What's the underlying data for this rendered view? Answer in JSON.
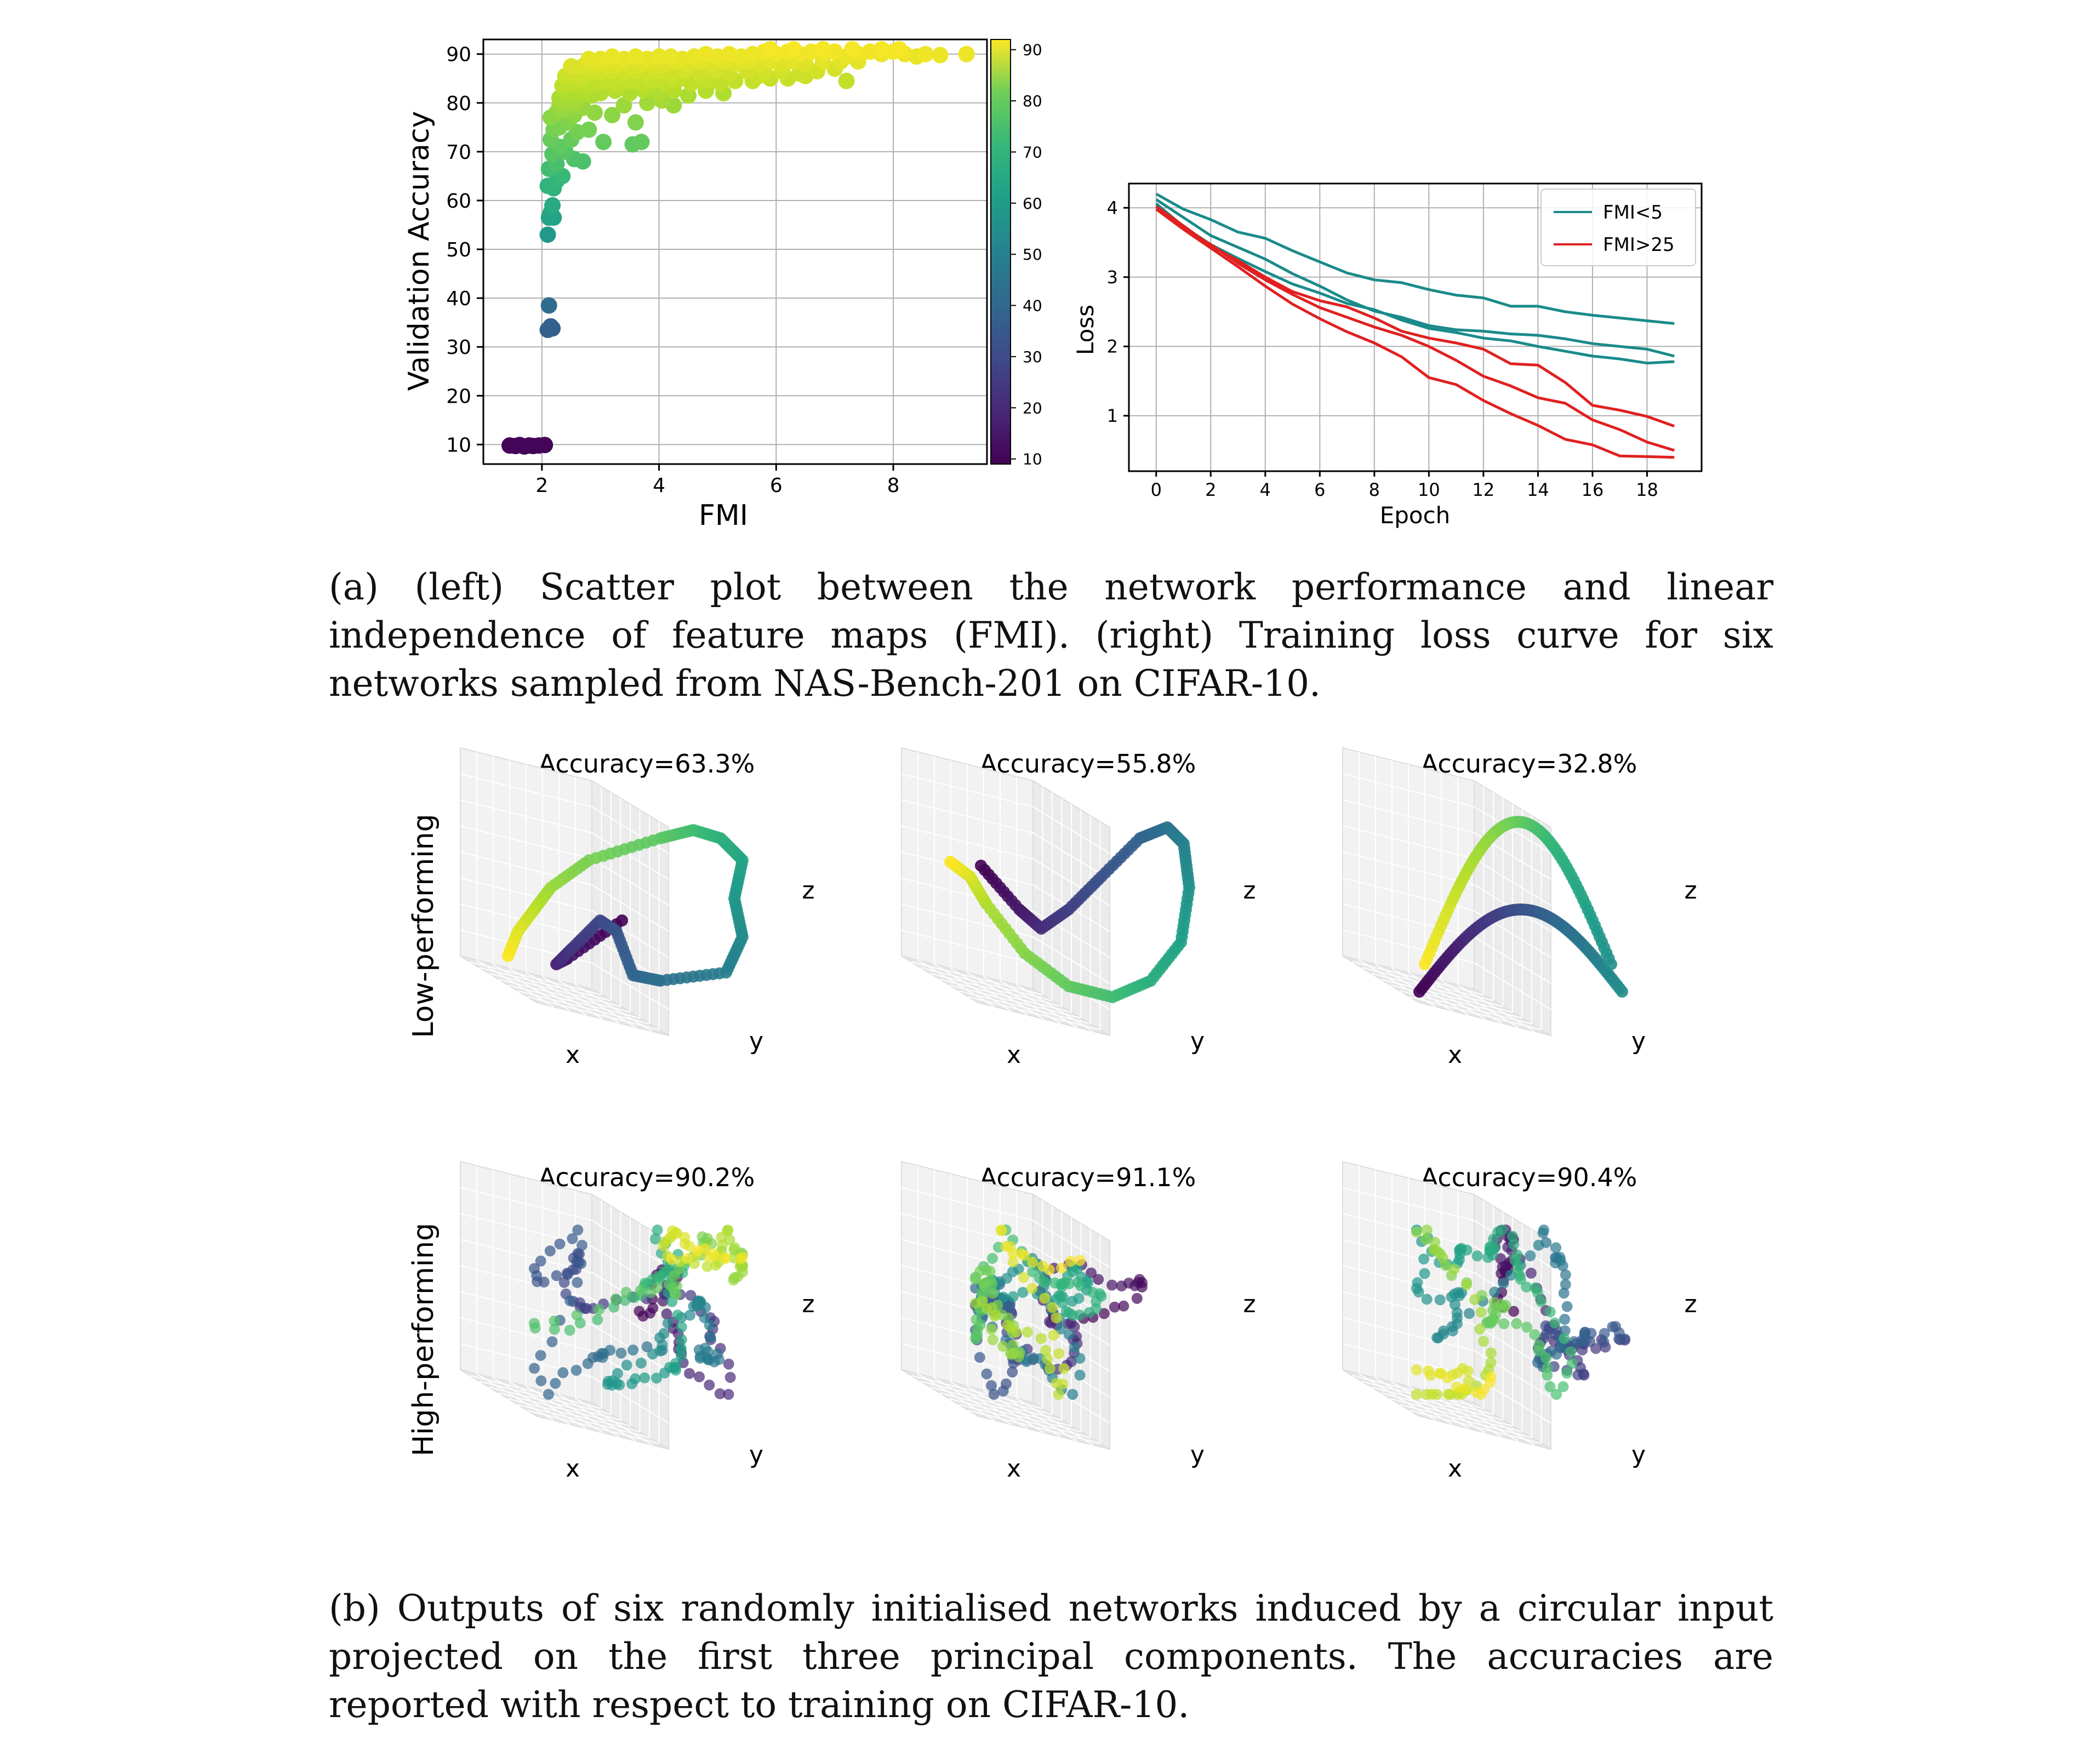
{
  "figure_a": {
    "scatter": {
      "xlabel": "FMI",
      "ylabel": "Validation Accuracy",
      "x_ticks": [
        "2",
        "4",
        "6",
        "8"
      ],
      "y_ticks": [
        "10",
        "20",
        "30",
        "40",
        "50",
        "60",
        "70",
        "80",
        "90"
      ],
      "colorbar_ticks": [
        "10",
        "20",
        "30",
        "40",
        "50",
        "60",
        "70",
        "80",
        "90"
      ]
    },
    "loss": {
      "xlabel": "Epoch",
      "ylabel": "Loss",
      "x_ticks": [
        "0",
        "2",
        "4",
        "6",
        "8",
        "10",
        "12",
        "14",
        "16",
        "18"
      ],
      "y_ticks": [
        "1",
        "2",
        "3",
        "4"
      ],
      "legend": [
        "FMI<5",
        "FMI>25"
      ]
    },
    "caption": "(a) (left) Scatter plot between the network performance and linear independence of feature maps (FMI). (right) Training loss curve for six networks sampled from NAS-Bench-201 on CIFAR-10."
  },
  "figure_b": {
    "row_labels": [
      "Low-performing",
      "High-performing"
    ],
    "titles": [
      "Accuracy=63.3%",
      "Accuracy=55.8%",
      "Accuracy=32.8%",
      "Accuracy=90.2%",
      "Accuracy=91.1%",
      "Accuracy=90.4%"
    ],
    "axis_labels": {
      "x": "x",
      "y": "y",
      "z": "z"
    },
    "caption": "(b) Outputs of six randomly initialised networks induced by a circular input projected on the first three principal components. The accuracies are reported with respect to training on CIFAR-10."
  },
  "chart_data": [
    {
      "type": "scatter",
      "xlabel": "FMI",
      "ylabel": "Validation Accuracy",
      "xlim": [
        1.0,
        9.6
      ],
      "ylim": [
        6,
        93
      ],
      "grid": true,
      "colorbar": {
        "colormap": "viridis",
        "range": [
          9,
          92
        ]
      },
      "points": [
        [
          1.45,
          9.8
        ],
        [
          1.55,
          9.7
        ],
        [
          1.62,
          9.9
        ],
        [
          1.7,
          9.6
        ],
        [
          1.78,
          9.8
        ],
        [
          1.85,
          9.7
        ],
        [
          1.95,
          9.8
        ],
        [
          2.05,
          9.9
        ],
        [
          2.1,
          33.5
        ],
        [
          2.15,
          34.2
        ],
        [
          2.18,
          33.8
        ],
        [
          2.12,
          38.5
        ],
        [
          2.1,
          53
        ],
        [
          2.12,
          56.5
        ],
        [
          2.15,
          57.5
        ],
        [
          2.2,
          56.5
        ],
        [
          2.18,
          59
        ],
        [
          2.2,
          62.5
        ],
        [
          2.1,
          63
        ],
        [
          2.25,
          64
        ],
        [
          2.12,
          66.5
        ],
        [
          2.25,
          67.5
        ],
        [
          2.35,
          65
        ],
        [
          2.18,
          69.5
        ],
        [
          2.4,
          70
        ],
        [
          2.3,
          71
        ],
        [
          2.55,
          68.5
        ],
        [
          2.5,
          72.5
        ],
        [
          2.15,
          72.5
        ],
        [
          2.2,
          74.5
        ],
        [
          2.3,
          75
        ],
        [
          2.45,
          76
        ],
        [
          2.6,
          74
        ],
        [
          2.8,
          74.5
        ],
        [
          3.05,
          72
        ],
        [
          2.7,
          68
        ],
        [
          2.15,
          77
        ],
        [
          2.25,
          78
        ],
        [
          2.35,
          78.5
        ],
        [
          2.55,
          77.5
        ],
        [
          2.5,
          79.5
        ],
        [
          2.7,
          79
        ],
        [
          2.9,
          78
        ],
        [
          3.2,
          77.5
        ],
        [
          3.55,
          71.5
        ],
        [
          3.7,
          72
        ],
        [
          3.6,
          76
        ],
        [
          3.4,
          79.5
        ],
        [
          3.8,
          80
        ],
        [
          4.05,
          80.5
        ],
        [
          4.25,
          79.5
        ],
        [
          2.3,
          81
        ],
        [
          2.4,
          82
        ],
        [
          2.55,
          81.5
        ],
        [
          2.7,
          82.5
        ],
        [
          2.85,
          81.5
        ],
        [
          3.0,
          82
        ],
        [
          3.25,
          82.5
        ],
        [
          3.5,
          82
        ],
        [
          3.75,
          82.5
        ],
        [
          4.0,
          82
        ],
        [
          4.25,
          82.5
        ],
        [
          4.5,
          81.5
        ],
        [
          4.8,
          82.5
        ],
        [
          5.1,
          82
        ],
        [
          2.35,
          83.5
        ],
        [
          2.5,
          84
        ],
        [
          2.65,
          84.5
        ],
        [
          2.8,
          83.5
        ],
        [
          2.95,
          84
        ],
        [
          3.1,
          84.5
        ],
        [
          3.3,
          84
        ],
        [
          3.5,
          84.5
        ],
        [
          3.7,
          84
        ],
        [
          3.9,
          84.5
        ],
        [
          4.1,
          84
        ],
        [
          4.3,
          84.5
        ],
        [
          4.55,
          84
        ],
        [
          4.8,
          84.5
        ],
        [
          5.05,
          84
        ],
        [
          5.3,
          84.5
        ],
        [
          5.6,
          84.5
        ],
        [
          5.9,
          85
        ],
        [
          6.2,
          85
        ],
        [
          2.4,
          85.5
        ],
        [
          2.55,
          86
        ],
        [
          2.7,
          85.5
        ],
        [
          2.85,
          86.5
        ],
        [
          3.0,
          86
        ],
        [
          3.2,
          86.5
        ],
        [
          3.4,
          86
        ],
        [
          3.6,
          86.5
        ],
        [
          3.8,
          86
        ],
        [
          4.0,
          86.5
        ],
        [
          4.2,
          86
        ],
        [
          4.45,
          86.5
        ],
        [
          4.7,
          86
        ],
        [
          4.95,
          86.5
        ],
        [
          5.2,
          86
        ],
        [
          5.5,
          86.5
        ],
        [
          5.8,
          86.5
        ],
        [
          6.1,
          86.5
        ],
        [
          6.4,
          86
        ],
        [
          6.7,
          86.5
        ],
        [
          7.0,
          87
        ],
        [
          2.5,
          87.5
        ],
        [
          2.7,
          87.5
        ],
        [
          2.9,
          88
        ],
        [
          3.1,
          87.5
        ],
        [
          3.3,
          88
        ],
        [
          3.5,
          87.5
        ],
        [
          3.7,
          88
        ],
        [
          3.9,
          87.5
        ],
        [
          4.1,
          88
        ],
        [
          4.3,
          88.5
        ],
        [
          4.5,
          88
        ],
        [
          4.7,
          88.5
        ],
        [
          4.9,
          88
        ],
        [
          5.1,
          88.5
        ],
        [
          5.3,
          88
        ],
        [
          5.5,
          88.5
        ],
        [
          5.7,
          88
        ],
        [
          5.9,
          88.5
        ],
        [
          6.1,
          88
        ],
        [
          6.3,
          88.5
        ],
        [
          6.5,
          88
        ],
        [
          6.8,
          88.5
        ],
        [
          7.1,
          88.5
        ],
        [
          7.4,
          88.5
        ],
        [
          2.8,
          89
        ],
        [
          3.0,
          89
        ],
        [
          3.2,
          89.5
        ],
        [
          3.4,
          89
        ],
        [
          3.6,
          89.5
        ],
        [
          3.8,
          89
        ],
        [
          4.0,
          89.5
        ],
        [
          4.2,
          89.5
        ],
        [
          4.4,
          89
        ],
        [
          4.6,
          89.5
        ],
        [
          4.8,
          90
        ],
        [
          5.0,
          89.5
        ],
        [
          5.2,
          90
        ],
        [
          5.4,
          89.5
        ],
        [
          5.6,
          90
        ],
        [
          5.8,
          90.5
        ],
        [
          6.0,
          90
        ],
        [
          6.2,
          90.5
        ],
        [
          6.4,
          90
        ],
        [
          6.6,
          90.5
        ],
        [
          6.8,
          90
        ],
        [
          7.0,
          90.5
        ],
        [
          7.2,
          89.5
        ],
        [
          7.4,
          90
        ],
        [
          7.6,
          90.5
        ],
        [
          7.8,
          90
        ],
        [
          8.0,
          90.5
        ],
        [
          8.2,
          90
        ],
        [
          8.4,
          89.5
        ],
        [
          8.55,
          90
        ],
        [
          8.8,
          89.8
        ],
        [
          9.25,
          90
        ],
        [
          5.9,
          91
        ],
        [
          6.3,
          91
        ],
        [
          6.8,
          91
        ],
        [
          7.3,
          91
        ],
        [
          7.8,
          91
        ],
        [
          8.1,
          91
        ],
        [
          7.2,
          84.5
        ],
        [
          6.5,
          85.5
        ],
        [
          5.7,
          85.5
        ],
        [
          4.2,
          85.5
        ],
        [
          3.3,
          83.5
        ],
        [
          2.6,
          80.5
        ],
        [
          2.45,
          80
        ],
        [
          2.3,
          79.5
        ]
      ]
    },
    {
      "type": "line",
      "xlabel": "Epoch",
      "ylabel": "Loss",
      "xlim": [
        -1,
        20
      ],
      "ylim": [
        0.2,
        4.35
      ],
      "grid": true,
      "legend_position": "top-right",
      "x": [
        0,
        1,
        2,
        3,
        4,
        5,
        6,
        7,
        8,
        9,
        10,
        11,
        12,
        13,
        14,
        15,
        16,
        17,
        18,
        19
      ],
      "series": [
        {
          "name": "FMI<5",
          "color": "#1a8a8a",
          "values": [
            4.2,
            3.98,
            3.83,
            3.65,
            3.56,
            3.38,
            3.22,
            3.06,
            2.96,
            2.92,
            2.82,
            2.74,
            2.7,
            2.58,
            2.58,
            2.5,
            2.45,
            2.41,
            2.37,
            2.33
          ]
        },
        {
          "name": "",
          "color": "#1a8a8a",
          "values": [
            4.12,
            3.86,
            3.6,
            3.43,
            3.26,
            3.05,
            2.87,
            2.67,
            2.51,
            2.42,
            2.3,
            2.24,
            2.22,
            2.18,
            2.16,
            2.11,
            2.04,
            2.0,
            1.96,
            1.86
          ]
        },
        {
          "name": "",
          "color": "#1a8a8a",
          "values": [
            4.06,
            3.73,
            3.47,
            3.27,
            3.08,
            2.9,
            2.77,
            2.62,
            2.53,
            2.38,
            2.26,
            2.2,
            2.12,
            2.08,
            2.0,
            1.93,
            1.86,
            1.82,
            1.76,
            1.78
          ]
        },
        {
          "name": "FMI>25",
          "color": "#e02020",
          "values": [
            4.02,
            3.74,
            3.45,
            3.24,
            3.0,
            2.79,
            2.66,
            2.57,
            2.41,
            2.22,
            2.12,
            2.05,
            1.96,
            1.75,
            1.73,
            1.48,
            1.15,
            1.08,
            0.99,
            0.85
          ]
        },
        {
          "name": "",
          "color": "#e02020",
          "values": [
            4.02,
            3.7,
            3.47,
            3.2,
            2.96,
            2.75,
            2.56,
            2.42,
            2.28,
            2.16,
            2.0,
            1.8,
            1.57,
            1.43,
            1.26,
            1.18,
            0.94,
            0.8,
            0.62,
            0.5
          ]
        },
        {
          "name": "",
          "color": "#e02020",
          "values": [
            3.98,
            3.69,
            3.42,
            3.15,
            2.87,
            2.61,
            2.4,
            2.21,
            2.05,
            1.85,
            1.55,
            1.45,
            1.22,
            1.03,
            0.86,
            0.66,
            0.58,
            0.42,
            0.41,
            0.4
          ]
        }
      ]
    }
  ]
}
